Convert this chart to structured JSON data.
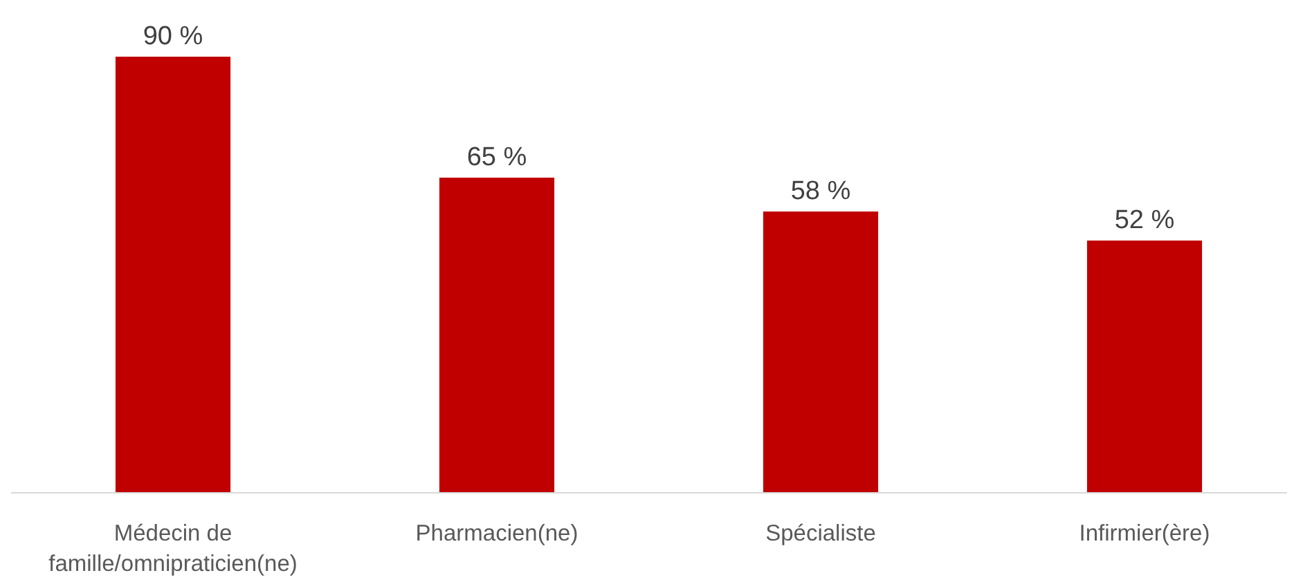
{
  "chart_data": {
    "type": "bar",
    "categories": [
      "Médecin de famille/omnipraticien(ne)",
      "Pharmacien(ne)",
      "Spécialiste",
      "Infirmier(ère)"
    ],
    "values": [
      90,
      65,
      58,
      52
    ],
    "color": "#c00000",
    "value_labels": [
      "90 %",
      "65 %",
      "58 %",
      "52 %"
    ]
  }
}
